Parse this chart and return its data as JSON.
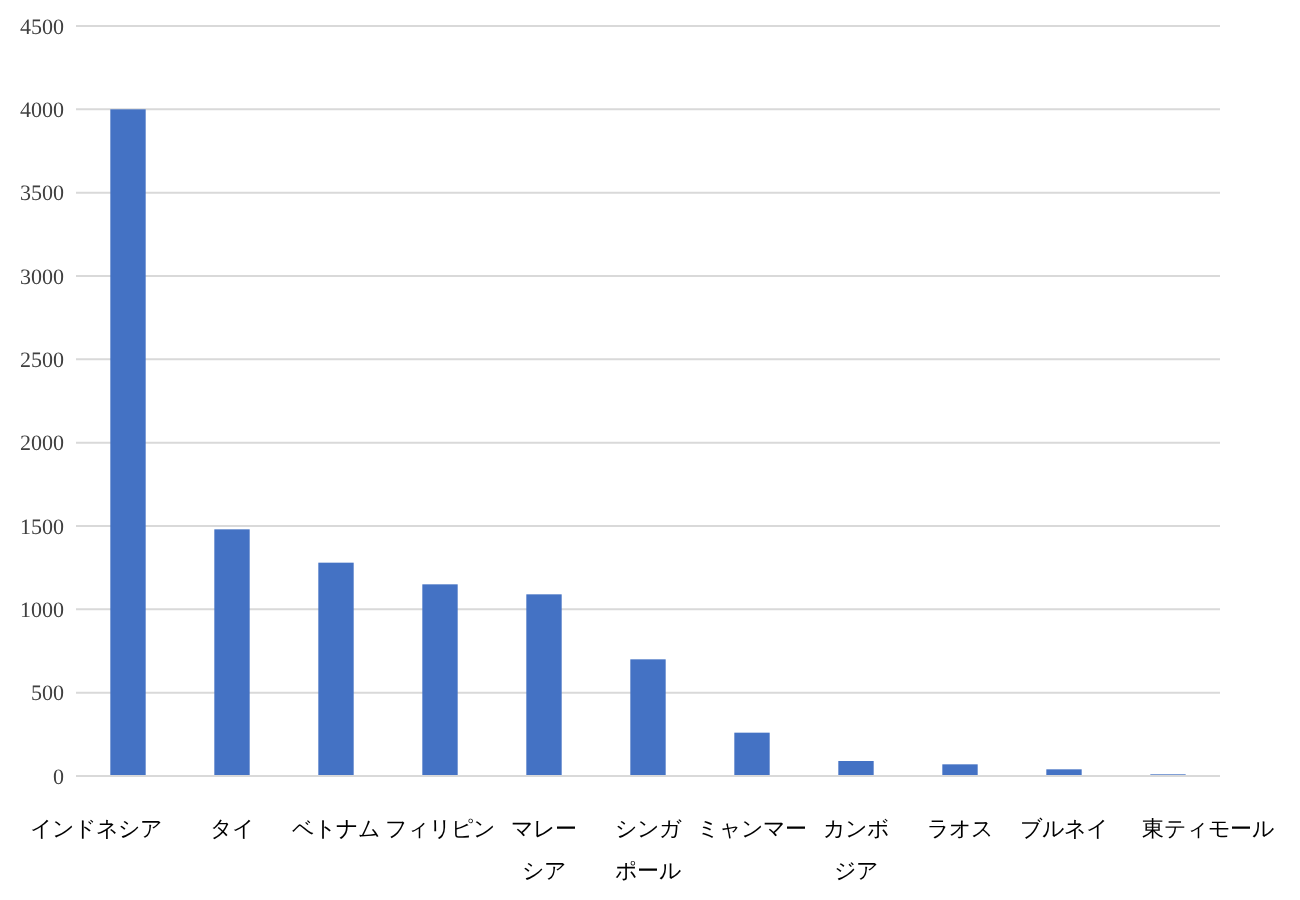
{
  "chart_data": {
    "type": "bar",
    "categories": [
      "インドネシア",
      "タイ",
      "ベトナム",
      "フィリピン",
      "マレーシア",
      "シンガポール",
      "ミャンマー",
      "カンボジア",
      "ラオス",
      "ブルネイ",
      "東ティモール"
    ],
    "values": [
      4000,
      1480,
      1280,
      1150,
      1090,
      700,
      260,
      90,
      70,
      40,
      10
    ],
    "color": "#4472c4",
    "ylim": [
      0,
      4500
    ],
    "yticks": [
      0,
      500,
      1000,
      1500,
      2000,
      2500,
      3000,
      3500,
      4000,
      4500
    ],
    "grid": "y"
  }
}
